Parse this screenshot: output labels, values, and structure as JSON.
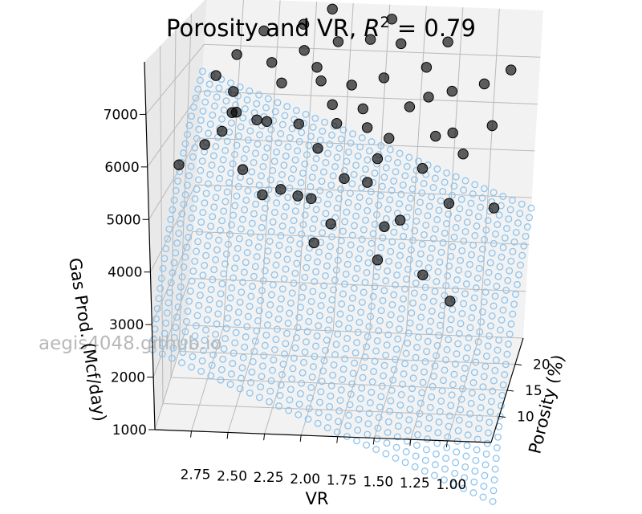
{
  "chart_data": {
    "type": "scatter",
    "title_prefix": "Porosity and VR, ",
    "title_r2_symbol": "R",
    "title_r2_power": "2",
    "title_r2_value": " = 0.79",
    "xlabel": "VR",
    "ylabel": "Porosity (%)",
    "zlabel": "Gas Prod. (Mcf/day)",
    "xticks": [
      "2.75",
      "2.50",
      "2.25",
      "2.00",
      "1.75",
      "1.50",
      "1.25",
      "1.00"
    ],
    "yticks": [
      "10",
      "15",
      "20"
    ],
    "zticks": [
      "1000",
      "2000",
      "3000",
      "4000",
      "5000",
      "6000",
      "7000"
    ],
    "xlim": [
      0.7,
      3.0
    ],
    "ylim": [
      5,
      25
    ],
    "zlim": [
      1000,
      8000
    ],
    "grid": true,
    "watermark": "aegis4048.github.io",
    "surface": {
      "kind": "regression-plane",
      "marker": "open-circle",
      "color": "#8ec4ee",
      "xcount": 36,
      "ycount": 30
    },
    "points_color": "#000000",
    "points": [
      [
        2.85,
        8.5,
        5800
      ],
      [
        2.7,
        10.0,
        6100
      ],
      [
        2.6,
        11.0,
        6300
      ],
      [
        2.55,
        12.0,
        6600
      ],
      [
        2.4,
        13.0,
        6400
      ],
      [
        2.45,
        10.5,
        5600
      ],
      [
        2.2,
        11.0,
        5200
      ],
      [
        2.1,
        12.0,
        5000
      ],
      [
        1.95,
        9.5,
        4300
      ],
      [
        1.5,
        8.5,
        4100
      ],
      [
        1.2,
        9.0,
        3800
      ],
      [
        1.0,
        8.0,
        3400
      ],
      [
        1.1,
        14.0,
        4800
      ],
      [
        1.3,
        15.0,
        5400
      ],
      [
        1.4,
        12.0,
        4600
      ],
      [
        1.6,
        14.5,
        5600
      ],
      [
        1.8,
        13.0,
        5300
      ],
      [
        1.7,
        16.0,
        6100
      ],
      [
        1.9,
        15.5,
        6200
      ],
      [
        2.0,
        14.0,
        5800
      ],
      [
        2.15,
        15.0,
        6200
      ],
      [
        2.3,
        16.5,
        6900
      ],
      [
        2.4,
        18.0,
        7200
      ],
      [
        2.2,
        19.0,
        7400
      ],
      [
        2.05,
        17.5,
        6900
      ],
      [
        1.85,
        18.0,
        6800
      ],
      [
        1.65,
        19.0,
        6900
      ],
      [
        1.45,
        18.0,
        6400
      ],
      [
        1.25,
        17.0,
        5900
      ],
      [
        1.05,
        16.5,
        5600
      ],
      [
        0.9,
        19.0,
        6000
      ],
      [
        1.0,
        21.0,
        6700
      ],
      [
        1.2,
        20.0,
        6600
      ],
      [
        1.4,
        21.0,
        7000
      ],
      [
        1.6,
        22.0,
        7400
      ],
      [
        1.8,
        21.5,
        7500
      ],
      [
        2.0,
        20.5,
        7500
      ],
      [
        2.25,
        21.0,
        7800
      ],
      [
        2.5,
        20.0,
        7700
      ],
      [
        2.65,
        18.5,
        7300
      ],
      [
        2.75,
        16.5,
        7000
      ],
      [
        2.6,
        15.0,
        6800
      ],
      [
        1.55,
        16.0,
        5900
      ],
      [
        1.75,
        17.0,
        6400
      ],
      [
        1.95,
        16.5,
        6500
      ],
      [
        2.1,
        18.5,
        7100
      ],
      [
        1.35,
        19.5,
        6500
      ],
      [
        1.15,
        18.0,
        5900
      ],
      [
        2.35,
        14.0,
        6300
      ],
      [
        2.55,
        13.5,
        6500
      ],
      [
        1.65,
        13.5,
        5200
      ],
      [
        1.5,
        11.5,
        4500
      ],
      [
        1.85,
        10.5,
        4600
      ],
      [
        2.0,
        11.5,
        5000
      ],
      [
        2.3,
        9.5,
        5200
      ],
      [
        1.3,
        23.0,
        7400
      ],
      [
        1.7,
        23.5,
        7800
      ],
      [
        2.1,
        23.0,
        8000
      ],
      [
        0.8,
        14.5,
        4700
      ],
      [
        0.85,
        22.5,
        6900
      ]
    ]
  }
}
